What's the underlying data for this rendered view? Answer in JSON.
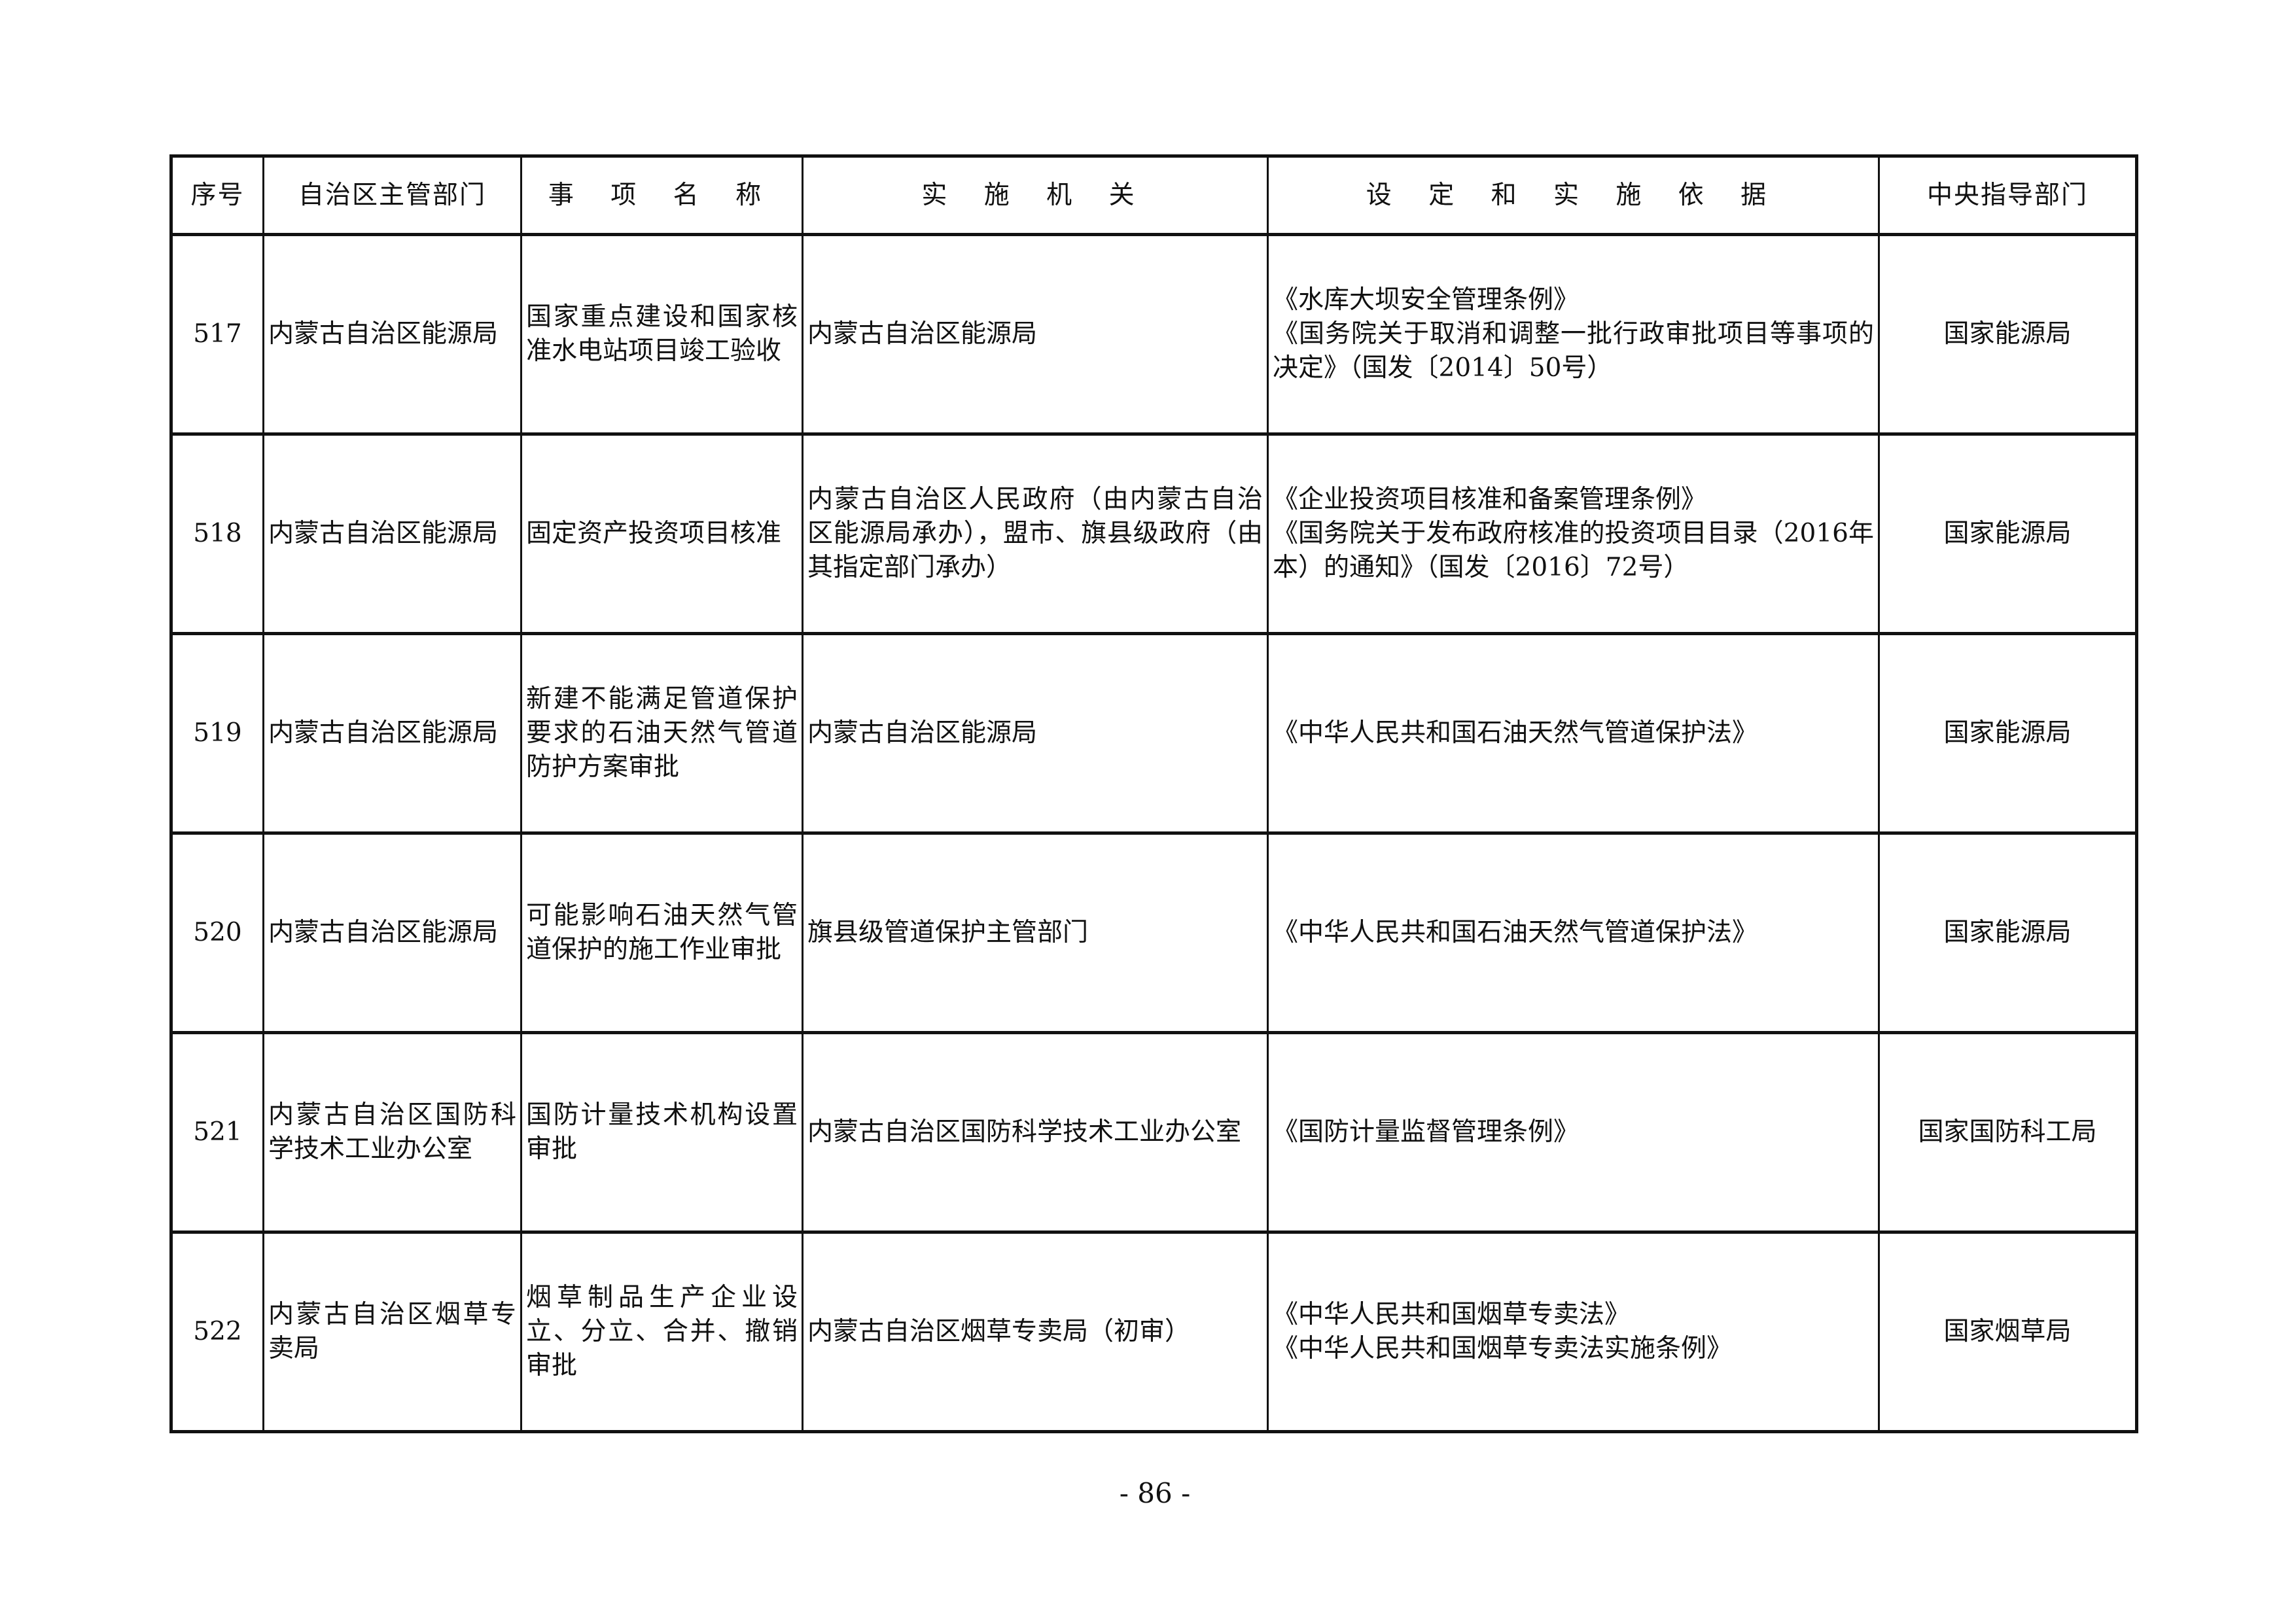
{
  "table": {
    "headers": [
      "序号",
      "自治区主管部门",
      "事 项 名 称",
      "实 施 机 关",
      "设 定 和 实 施 依 据",
      "中央指导部门"
    ],
    "rows": [
      {
        "no": "517",
        "dept": "内蒙古自治区能源局",
        "item": "国家重点建设和国家核准水电站项目竣工验收",
        "agency": "内蒙古自治区能源局",
        "basis": [
          "《水库大坝安全管理条例》",
          "《国务院关于取消和调整一批行政审批项目等事项的决定》（国发〔2014〕50号）"
        ],
        "central": "国家能源局"
      },
      {
        "no": "518",
        "dept": "内蒙古自治区能源局",
        "item": "固定资产投资项目核准",
        "agency": "内蒙古自治区人民政府（由内蒙古自治区能源局承办），盟市、旗县级政府（由其指定部门承办）",
        "basis": [
          "《企业投资项目核准和备案管理条例》",
          "《国务院关于发布政府核准的投资项目目录（2016年本）的通知》（国发〔2016〕72号）"
        ],
        "central": "国家能源局"
      },
      {
        "no": "519",
        "dept": "内蒙古自治区能源局",
        "item": "新建不能满足管道保护要求的石油天然气管道防护方案审批",
        "agency": "内蒙古自治区能源局",
        "basis": [
          "《中华人民共和国石油天然气管道保护法》"
        ],
        "central": "国家能源局"
      },
      {
        "no": "520",
        "dept": "内蒙古自治区能源局",
        "item": "可能影响石油天然气管道保护的施工作业审批",
        "agency": "旗县级管道保护主管部门",
        "basis": [
          "《中华人民共和国石油天然气管道保护法》"
        ],
        "central": "国家能源局"
      },
      {
        "no": "521",
        "dept": "内蒙古自治区国防科学技术工业办公室",
        "item": "国防计量技术机构设置审批",
        "agency": "内蒙古自治区国防科学技术工业办公室",
        "basis": [
          "《国防计量监督管理条例》"
        ],
        "central": "国家国防科工局"
      },
      {
        "no": "522",
        "dept": "内蒙古自治区烟草专卖局",
        "item": "烟草制品生产企业设立、分立、合并、撤销审批",
        "agency": "内蒙古自治区烟草专卖局（初审）",
        "basis": [
          "《中华人民共和国烟草专卖法》",
          "《中华人民共和国烟草专卖法实施条例》"
        ],
        "central": "国家烟草局"
      }
    ]
  },
  "page_number": "- 86 -"
}
